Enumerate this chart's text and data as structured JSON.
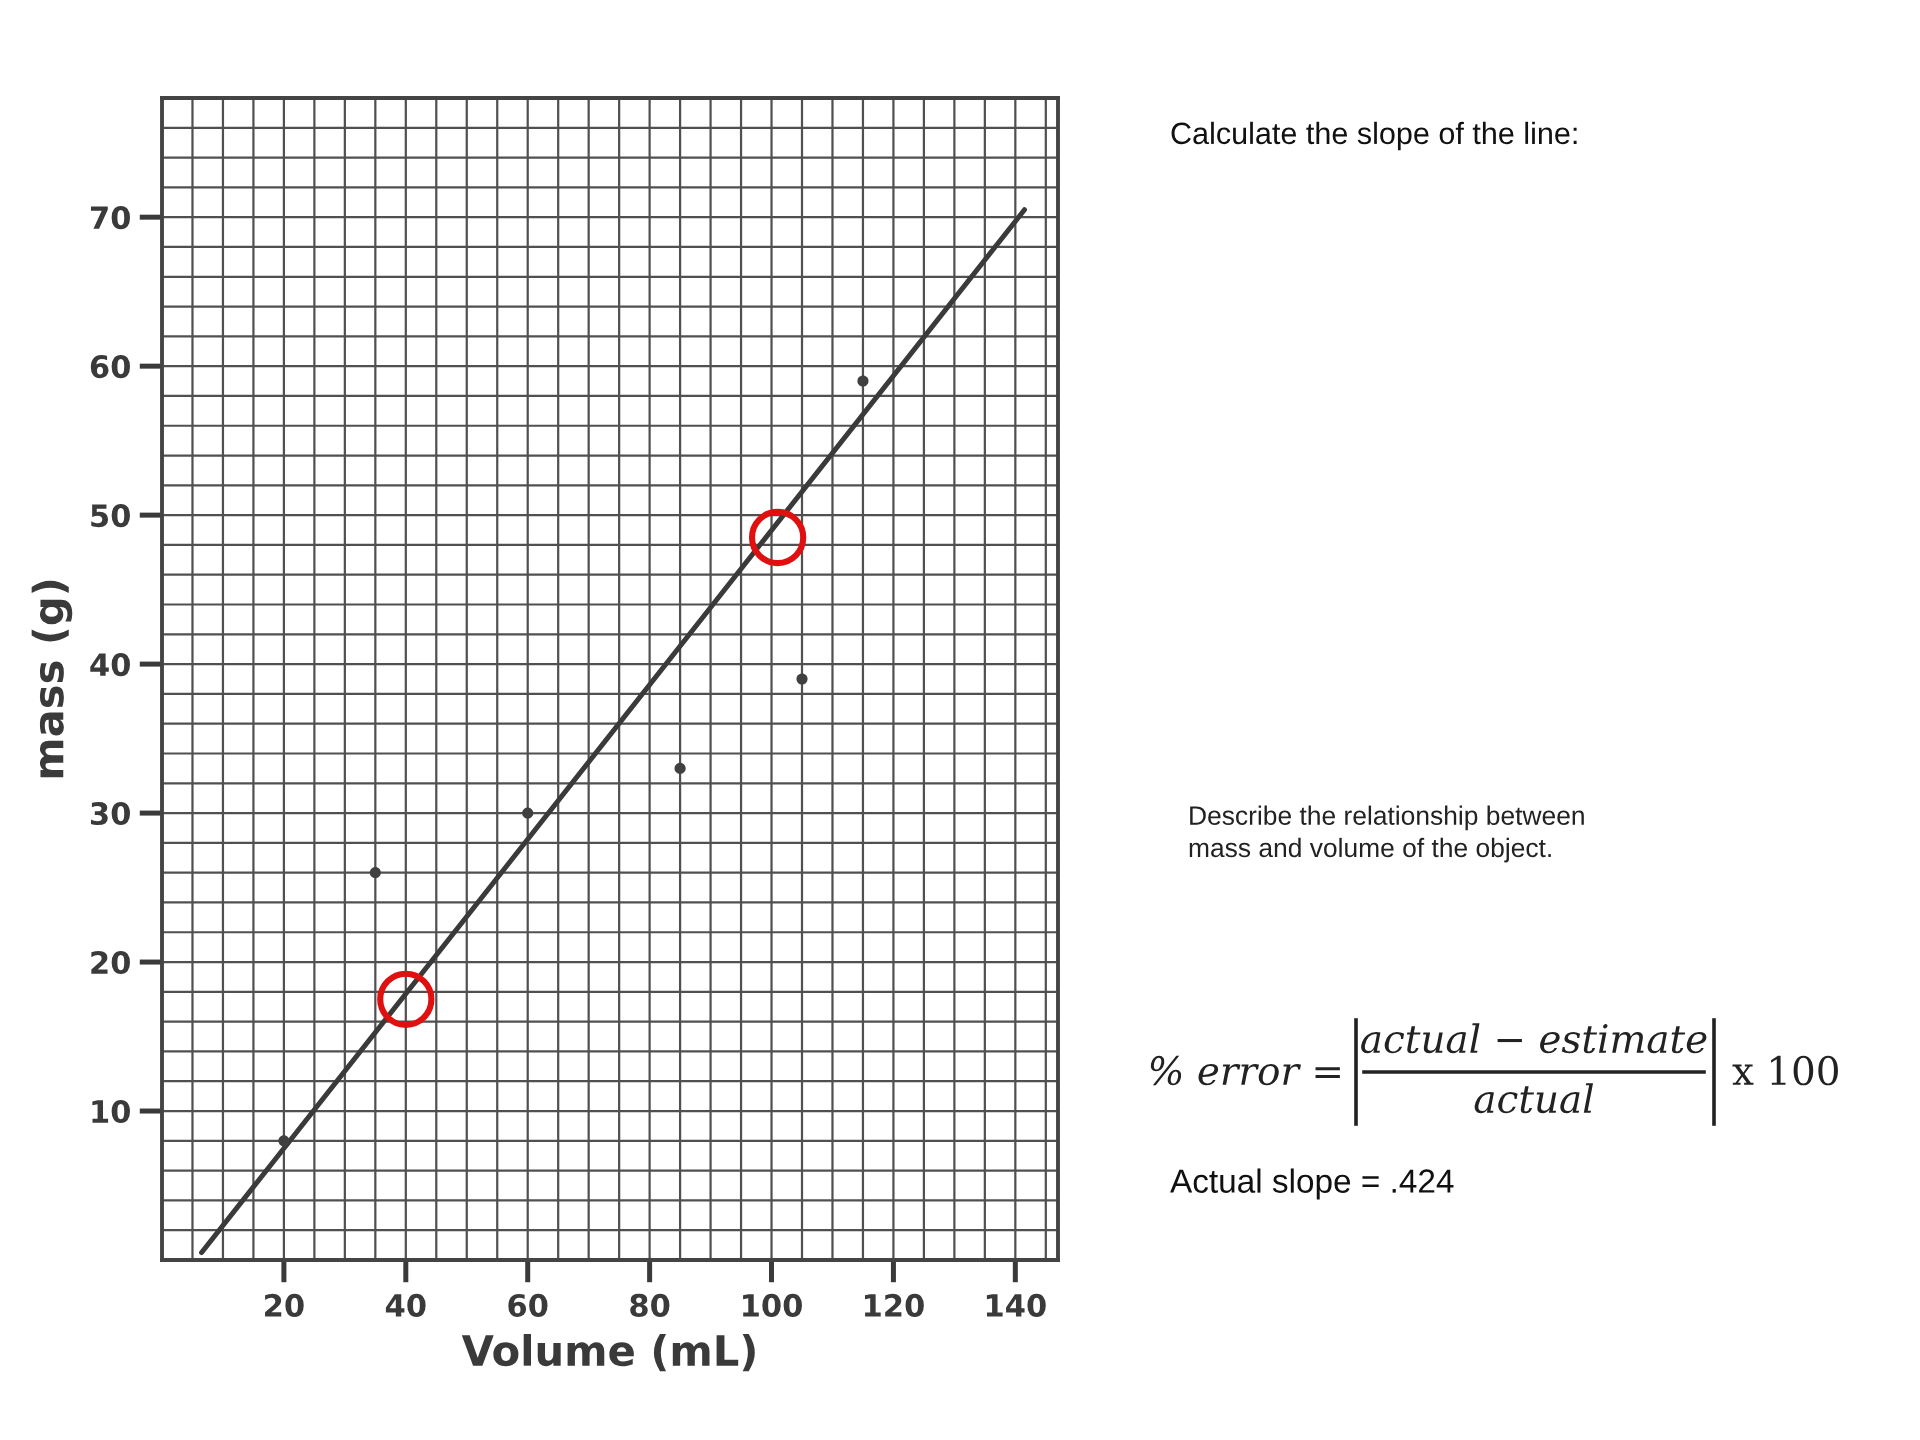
{
  "chart_data": {
    "type": "scatter",
    "xlabel": "Volume (mL)",
    "ylabel": "mass (g)",
    "xlim": [
      0,
      147
    ],
    "ylim": [
      0,
      78
    ],
    "xticks": [
      {
        "value": 0,
        "label": null
      },
      {
        "value": 5,
        "label": null
      },
      {
        "value": 10,
        "label": null
      },
      {
        "value": 15,
        "label": null
      },
      20,
      {
        "value": 25,
        "label": null
      },
      {
        "value": 30,
        "label": null
      },
      {
        "value": 35,
        "label": null
      },
      40,
      {
        "value": 45,
        "label": null
      },
      {
        "value": 50,
        "label": null
      },
      {
        "value": 55,
        "label": null
      },
      60,
      {
        "value": 65,
        "label": null
      },
      {
        "value": 70,
        "label": null
      },
      {
        "value": 75,
        "label": null
      },
      80,
      {
        "value": 85,
        "label": null
      },
      {
        "value": 90,
        "label": null
      },
      {
        "value": 95,
        "label": null
      },
      100,
      {
        "value": 105,
        "label": null
      },
      {
        "value": 110,
        "label": null
      },
      {
        "value": 115,
        "label": null
      },
      120,
      {
        "value": 125,
        "label": null
      },
      {
        "value": 130,
        "label": null
      },
      {
        "value": 135,
        "label": null
      },
      140,
      {
        "value": 145,
        "label": null
      }
    ],
    "yticks": [
      {
        "value": 0,
        "label": null
      },
      {
        "value": 2,
        "label": null
      },
      {
        "value": 4,
        "label": null
      },
      {
        "value": 6,
        "label": null
      },
      {
        "value": 8,
        "label": null
      },
      10,
      {
        "value": 12,
        "label": null
      },
      {
        "value": 14,
        "label": null
      },
      {
        "value": 16,
        "label": null
      },
      {
        "value": 18,
        "label": null
      },
      20,
      {
        "value": 22,
        "label": null
      },
      {
        "value": 24,
        "label": null
      },
      {
        "value": 26,
        "label": null
      },
      {
        "value": 28,
        "label": null
      },
      30,
      {
        "value": 32,
        "label": null
      },
      {
        "value": 34,
        "label": null
      },
      {
        "value": 36,
        "label": null
      },
      {
        "value": 38,
        "label": null
      },
      40,
      {
        "value": 42,
        "label": null
      },
      {
        "value": 44,
        "label": null
      },
      {
        "value": 46,
        "label": null
      },
      {
        "value": 48,
        "label": null
      },
      50,
      {
        "value": 52,
        "label": null
      },
      {
        "value": 54,
        "label": null
      },
      {
        "value": 56,
        "label": null
      },
      {
        "value": 58,
        "label": null
      },
      60,
      {
        "value": 62,
        "label": null
      },
      {
        "value": 64,
        "label": null
      },
      {
        "value": 66,
        "label": null
      },
      {
        "value": 68,
        "label": null
      },
      70,
      {
        "value": 72,
        "label": null
      },
      {
        "value": 74,
        "label": null
      },
      {
        "value": 76,
        "label": null
      },
      {
        "value": 78,
        "label": null
      }
    ],
    "grid": true,
    "series": [
      {
        "type": "line",
        "color": "#3a3a3a",
        "line_style": "solid",
        "x": [
          6.5,
          141.5
        ],
        "values": [
          0.5,
          70.5
        ]
      },
      {
        "color": "#404040",
        "marker": "circle",
        "x": [
          20,
          35,
          60,
          85,
          105,
          115
        ],
        "values": [
          8,
          26,
          30,
          33,
          39,
          59
        ]
      },
      {
        "type": "bubble",
        "color": "#e01010",
        "x": [
          40,
          101
        ],
        "values": [
          17.5,
          48.5
        ],
        "sizes": [
          1,
          1
        ]
      }
    ],
    "annotations": [
      "Calculate the slope of the line:",
      "Describe the relationship between\nmass and volume of the object.",
      "% error =",
      "actual − estimate",
      "actual",
      "x 100",
      "Actual slope = .424"
    ]
  }
}
